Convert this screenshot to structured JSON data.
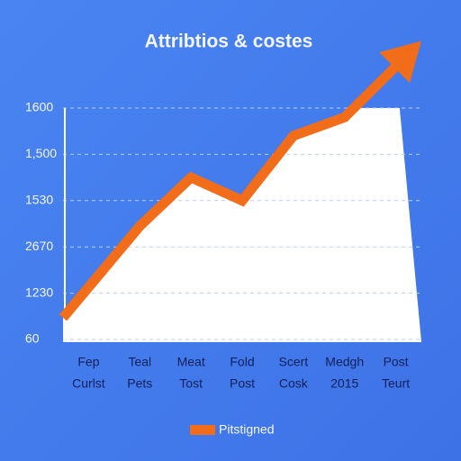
{
  "chart_data": {
    "type": "line",
    "title": "Attribtios & costes",
    "categories": [
      "Fep",
      "Teal",
      "Meat",
      "Fold",
      "Scert",
      "Medgh",
      "Post"
    ],
    "sublabels": [
      "Curlst",
      "Pets",
      "Tost",
      "Post",
      "Cosk",
      "2015",
      "Teurt"
    ],
    "series": [
      {
        "name": "Pitstigned",
        "color": "#f26d1a",
        "values": [
          1.13,
          2.45,
          3.5,
          3.0,
          4.4,
          4.8,
          5.9
        ]
      }
    ],
    "ylim": [
      0,
      5
    ],
    "yticks": [
      {
        "value": 0,
        "label": "60"
      },
      {
        "value": 1,
        "label": "1230"
      },
      {
        "value": 2,
        "label": "2670"
      },
      {
        "value": 3,
        "label": "1530"
      },
      {
        "value": 4,
        "label": "1,500"
      },
      {
        "value": 5,
        "label": "1600"
      }
    ],
    "grid": true,
    "legend": "bottom"
  }
}
